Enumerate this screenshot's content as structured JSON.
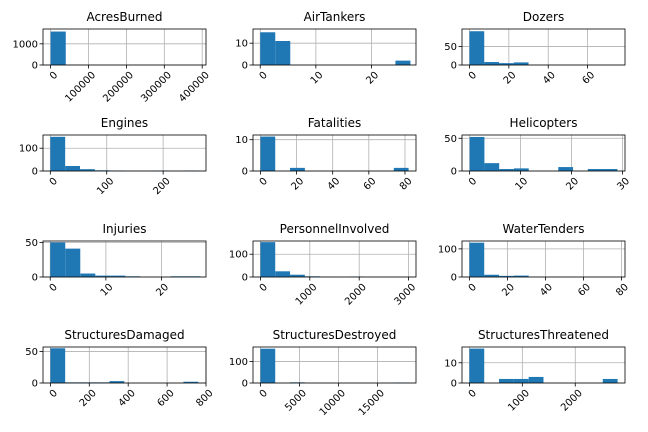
{
  "chart_data": [
    {
      "type": "bar",
      "title": "AcresBurned",
      "xlim": [
        -20000,
        410000
      ],
      "ylim": [
        0,
        1700
      ],
      "xticks": [
        {
          "v": 0,
          "label": "0"
        },
        {
          "v": 100000,
          "label": "100000"
        },
        {
          "v": 200000,
          "label": "200000"
        },
        {
          "v": 300000,
          "label": "300000"
        },
        {
          "v": 400000,
          "label": "400000"
        }
      ],
      "yticks": [
        {
          "v": 0,
          "label": "0"
        },
        {
          "v": 1000,
          "label": "1000"
        }
      ],
      "bins": [
        [
          0,
          40000,
          1580
        ],
        [
          40000,
          80000,
          8
        ],
        [
          80000,
          120000,
          3
        ],
        [
          120000,
          160000,
          1
        ],
        [
          160000,
          200000,
          0
        ],
        [
          200000,
          240000,
          0
        ],
        [
          240000,
          280000,
          1
        ],
        [
          280000,
          320000,
          0
        ],
        [
          320000,
          360000,
          0
        ],
        [
          360000,
          400000,
          1
        ]
      ]
    },
    {
      "type": "bar",
      "title": "AirTankers",
      "xlim": [
        -1.3,
        28
      ],
      "ylim": [
        0,
        16.5
      ],
      "xticks": [
        {
          "v": 0,
          "label": "0"
        },
        {
          "v": 10,
          "label": "10"
        },
        {
          "v": 20,
          "label": "20"
        }
      ],
      "yticks": [
        {
          "v": 0,
          "label": "0"
        },
        {
          "v": 10,
          "label": "10"
        }
      ],
      "bins": [
        [
          0,
          2.7,
          15
        ],
        [
          2.7,
          5.4,
          11
        ],
        [
          5.4,
          8.1,
          0
        ],
        [
          8.1,
          10.8,
          0
        ],
        [
          10.8,
          13.5,
          0
        ],
        [
          13.5,
          16.2,
          0
        ],
        [
          16.2,
          18.9,
          0
        ],
        [
          18.9,
          21.6,
          0
        ],
        [
          21.6,
          24.3,
          0
        ],
        [
          24.3,
          27,
          2
        ]
      ]
    },
    {
      "type": "bar",
      "title": "Dozers",
      "xlim": [
        -3.8,
        79
      ],
      "ylim": [
        0,
        97
      ],
      "xticks": [
        {
          "v": 0,
          "label": "0"
        },
        {
          "v": 20,
          "label": "20"
        },
        {
          "v": 40,
          "label": "40"
        },
        {
          "v": 60,
          "label": "60"
        }
      ],
      "yticks": [
        {
          "v": 0,
          "label": "0"
        },
        {
          "v": 50,
          "label": "50"
        }
      ],
      "bins": [
        [
          0,
          7.5,
          91
        ],
        [
          7.5,
          15,
          8
        ],
        [
          15,
          22.5,
          5
        ],
        [
          22.5,
          30,
          7
        ],
        [
          30,
          37.5,
          0
        ],
        [
          37.5,
          45,
          0
        ],
        [
          45,
          52.5,
          0
        ],
        [
          52.5,
          60,
          0
        ],
        [
          60,
          67.5,
          0
        ],
        [
          67.5,
          75,
          0
        ]
      ]
    },
    {
      "type": "bar",
      "title": "Engines",
      "xlim": [
        -13,
        276
      ],
      "ylim": [
        0,
        158
      ],
      "xticks": [
        {
          "v": 0,
          "label": "0"
        },
        {
          "v": 100,
          "label": "100"
        },
        {
          "v": 200,
          "label": "200"
        }
      ],
      "yticks": [
        {
          "v": 0,
          "label": "0"
        },
        {
          "v": 100,
          "label": "100"
        }
      ],
      "bins": [
        [
          0,
          26.3,
          150
        ],
        [
          26.3,
          52.6,
          22
        ],
        [
          52.6,
          78.9,
          8
        ],
        [
          78.9,
          105.2,
          3
        ],
        [
          105.2,
          131.5,
          2
        ],
        [
          131.5,
          157.8,
          1
        ],
        [
          157.8,
          184.1,
          1
        ],
        [
          184.1,
          210.4,
          2
        ],
        [
          210.4,
          236.7,
          0
        ],
        [
          236.7,
          263,
          2
        ]
      ]
    },
    {
      "type": "bar",
      "title": "Fatalities",
      "xlim": [
        -4.1,
        86.1
      ],
      "ylim": [
        0,
        11.5
      ],
      "xticks": [
        {
          "v": 0,
          "label": "0"
        },
        {
          "v": 20,
          "label": "20"
        },
        {
          "v": 40,
          "label": "40"
        },
        {
          "v": 60,
          "label": "60"
        },
        {
          "v": 80,
          "label": "80"
        }
      ],
      "yticks": [
        {
          "v": 0,
          "label": "0"
        },
        {
          "v": 10,
          "label": "10"
        }
      ],
      "bins": [
        [
          0,
          8.2,
          11
        ],
        [
          8.2,
          16.4,
          0
        ],
        [
          16.4,
          24.6,
          1
        ],
        [
          24.6,
          32.8,
          0
        ],
        [
          32.8,
          41,
          0
        ],
        [
          41,
          49.2,
          0
        ],
        [
          49.2,
          57.4,
          0
        ],
        [
          57.4,
          65.6,
          0
        ],
        [
          65.6,
          73.8,
          0
        ],
        [
          73.8,
          82,
          1
        ]
      ]
    },
    {
      "type": "bar",
      "title": "Helicopters",
      "xlim": [
        -1.5,
        30.5
      ],
      "ylim": [
        0,
        55
      ],
      "xticks": [
        {
          "v": 0,
          "label": "0"
        },
        {
          "v": 10,
          "label": "10"
        },
        {
          "v": 20,
          "label": "20"
        },
        {
          "v": 30,
          "label": "30"
        }
      ],
      "yticks": [
        {
          "v": 0,
          "label": "0"
        },
        {
          "v": 50,
          "label": "50"
        }
      ],
      "bins": [
        [
          0,
          2.9,
          52
        ],
        [
          2.9,
          5.8,
          12
        ],
        [
          5.8,
          8.7,
          3
        ],
        [
          8.7,
          11.6,
          4
        ],
        [
          11.6,
          14.5,
          0
        ],
        [
          14.5,
          17.4,
          0
        ],
        [
          17.4,
          20.3,
          6
        ],
        [
          20.3,
          23.2,
          0
        ],
        [
          23.2,
          26.1,
          3
        ],
        [
          26.1,
          29,
          3
        ]
      ]
    },
    {
      "type": "bar",
      "title": "Injuries",
      "xlim": [
        -1.3,
        28
      ],
      "ylim": [
        0,
        52
      ],
      "xticks": [
        {
          "v": 0,
          "label": "0"
        },
        {
          "v": 10,
          "label": "10"
        },
        {
          "v": 20,
          "label": "20"
        }
      ],
      "yticks": [
        {
          "v": 0,
          "label": "0"
        },
        {
          "v": 50,
          "label": "50"
        }
      ],
      "bins": [
        [
          0,
          2.7,
          50
        ],
        [
          2.7,
          5.4,
          41
        ],
        [
          5.4,
          8.1,
          5
        ],
        [
          8.1,
          10.8,
          2
        ],
        [
          10.8,
          13.5,
          2
        ],
        [
          13.5,
          16.2,
          1
        ],
        [
          16.2,
          18.9,
          0
        ],
        [
          18.9,
          21.6,
          0
        ],
        [
          21.6,
          24.3,
          1
        ],
        [
          24.3,
          27,
          1
        ]
      ]
    },
    {
      "type": "bar",
      "title": "PersonnelInvolved",
      "xlim": [
        -150,
        3150
      ],
      "ylim": [
        0,
        158
      ],
      "xticks": [
        {
          "v": 0,
          "label": "0"
        },
        {
          "v": 1000,
          "label": "1000"
        },
        {
          "v": 2000,
          "label": "2000"
        },
        {
          "v": 3000,
          "label": "3000"
        }
      ],
      "yticks": [
        {
          "v": 0,
          "label": "0"
        },
        {
          "v": 100,
          "label": "100"
        }
      ],
      "bins": [
        [
          0,
          300,
          153
        ],
        [
          300,
          600,
          25
        ],
        [
          600,
          900,
          10
        ],
        [
          900,
          1200,
          3
        ],
        [
          1200,
          1500,
          1
        ],
        [
          1500,
          1800,
          0
        ],
        [
          1800,
          2100,
          2
        ],
        [
          2100,
          2400,
          0
        ],
        [
          2400,
          2700,
          0
        ],
        [
          2700,
          3000,
          0
        ]
      ]
    },
    {
      "type": "bar",
      "title": "WaterTenders",
      "xlim": [
        -3.9,
        81.9
      ],
      "ylim": [
        0,
        128
      ],
      "xticks": [
        {
          "v": 0,
          "label": "0"
        },
        {
          "v": 20,
          "label": "20"
        },
        {
          "v": 40,
          "label": "40"
        },
        {
          "v": 60,
          "label": "60"
        },
        {
          "v": 80,
          "label": "80"
        }
      ],
      "yticks": [
        {
          "v": 0,
          "label": "0"
        },
        {
          "v": 100,
          "label": "100"
        }
      ],
      "bins": [
        [
          0,
          7.8,
          122
        ],
        [
          7.8,
          15.6,
          8
        ],
        [
          15.6,
          23.4,
          4
        ],
        [
          23.4,
          31.2,
          5
        ],
        [
          31.2,
          39,
          0
        ],
        [
          39,
          46.8,
          0
        ],
        [
          46.8,
          54.6,
          0
        ],
        [
          54.6,
          62.4,
          0
        ],
        [
          62.4,
          70.2,
          0
        ],
        [
          70.2,
          78,
          0
        ]
      ]
    },
    {
      "type": "bar",
      "title": "StructuresDamaged",
      "xlim": [
        -38,
        800
      ],
      "ylim": [
        0,
        57
      ],
      "xticks": [
        {
          "v": 0,
          "label": "0"
        },
        {
          "v": 200,
          "label": "200"
        },
        {
          "v": 400,
          "label": "400"
        },
        {
          "v": 600,
          "label": "600"
        },
        {
          "v": 800,
          "label": "800"
        }
      ],
      "yticks": [
        {
          "v": 0,
          "label": "0"
        },
        {
          "v": 50,
          "label": "50"
        }
      ],
      "bins": [
        [
          0,
          76,
          55
        ],
        [
          76,
          152,
          1
        ],
        [
          152,
          228,
          1
        ],
        [
          228,
          304,
          1
        ],
        [
          304,
          380,
          3
        ],
        [
          380,
          456,
          0
        ],
        [
          456,
          532,
          0
        ],
        [
          532,
          608,
          0
        ],
        [
          608,
          684,
          0
        ],
        [
          684,
          760,
          2
        ]
      ]
    },
    {
      "type": "bar",
      "title": "StructuresDestroyed",
      "xlim": [
        -950,
        19950
      ],
      "ylim": [
        0,
        168
      ],
      "xticks": [
        {
          "v": 0,
          "label": "0"
        },
        {
          "v": 5000,
          "label": "5000"
        },
        {
          "v": 10000,
          "label": "10000"
        },
        {
          "v": 15000,
          "label": "15000"
        }
      ],
      "yticks": [
        {
          "v": 0,
          "label": "0"
        },
        {
          "v": 100,
          "label": "100"
        }
      ],
      "bins": [
        [
          0,
          1900,
          160
        ],
        [
          1900,
          3800,
          0
        ],
        [
          3800,
          5700,
          3
        ],
        [
          5700,
          7600,
          0
        ],
        [
          7600,
          9500,
          0
        ],
        [
          9500,
          11400,
          0
        ],
        [
          11400,
          13300,
          0
        ],
        [
          13300,
          15200,
          0
        ],
        [
          15200,
          17100,
          0
        ],
        [
          17100,
          19000,
          2
        ]
      ]
    },
    {
      "type": "bar",
      "title": "StructuresThreatened",
      "xlim": [
        -140,
        2940
      ],
      "ylim": [
        0,
        17.8
      ],
      "xticks": [
        {
          "v": 0,
          "label": "0"
        },
        {
          "v": 1000,
          "label": "1000"
        },
        {
          "v": 2000,
          "label": "2000"
        }
      ],
      "yticks": [
        {
          "v": 0,
          "label": "0"
        },
        {
          "v": 10,
          "label": "10"
        }
      ],
      "bins": [
        [
          0,
          280,
          17
        ],
        [
          280,
          560,
          0
        ],
        [
          560,
          840,
          2
        ],
        [
          840,
          1120,
          2
        ],
        [
          1120,
          1400,
          3
        ],
        [
          1400,
          1680,
          0
        ],
        [
          1680,
          1960,
          0
        ],
        [
          1960,
          2240,
          0
        ],
        [
          2240,
          2520,
          0
        ],
        [
          2520,
          2800,
          2
        ]
      ]
    }
  ]
}
